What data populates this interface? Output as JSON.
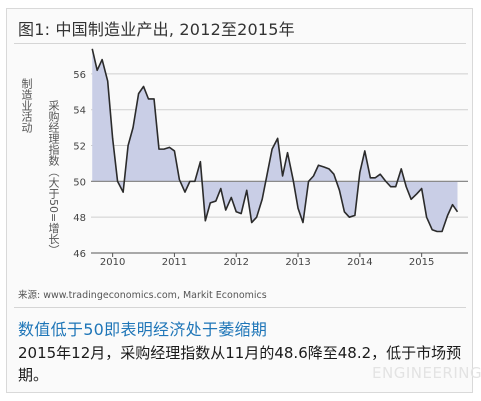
{
  "figure": {
    "title": "图1: 中国制造业产出, 2012至2015年",
    "source": "来源: www.tradingeconomics.com, Markit Economics",
    "headline": "数值低于50即表明经济处于萎缩期",
    "body": "2015年12月，采购经理指数从11月的48.6降至48.2，低于市场预期。",
    "watermark": "ENGINEERING"
  },
  "chart_data": {
    "type": "area",
    "ylabel_outer": "制造业活动",
    "ylabel_inner": "采购经理指数（大于50=增长）",
    "baseline": 50,
    "ylim": [
      46,
      57
    ],
    "yticks": [
      46,
      48,
      50,
      52,
      54,
      56
    ],
    "xlim": [
      2009.65,
      2015.75
    ],
    "xticks": [
      {
        "value": 2010,
        "label": "2010"
      },
      {
        "value": 2011,
        "label": "2011"
      },
      {
        "value": 2012,
        "label": "2012"
      },
      {
        "value": 2013,
        "label": "2013"
      },
      {
        "value": 2014,
        "label": "2014"
      },
      {
        "value": 2015,
        "label": "2015"
      }
    ],
    "grid": true,
    "line_color": "#2b2b2b",
    "fill_color": "#c9cee6",
    "x": [
      2009.67,
      2009.75,
      2009.83,
      2009.92,
      2010.0,
      2010.08,
      2010.17,
      2010.25,
      2010.33,
      2010.42,
      2010.5,
      2010.58,
      2010.67,
      2010.75,
      2010.83,
      2010.92,
      2011.0,
      2011.08,
      2011.17,
      2011.25,
      2011.33,
      2011.42,
      2011.5,
      2011.58,
      2011.67,
      2011.75,
      2011.83,
      2011.92,
      2012.0,
      2012.08,
      2012.17,
      2012.25,
      2012.33,
      2012.42,
      2012.5,
      2012.58,
      2012.67,
      2012.75,
      2012.83,
      2012.92,
      2013.0,
      2013.08,
      2013.17,
      2013.25,
      2013.33,
      2013.42,
      2013.5,
      2013.58,
      2013.67,
      2013.75,
      2013.83,
      2013.92,
      2014.0,
      2014.08,
      2014.17,
      2014.25,
      2014.33,
      2014.42,
      2014.5,
      2014.58,
      2014.67,
      2014.75,
      2014.83,
      2014.92,
      2015.0,
      2015.08,
      2015.17,
      2015.25,
      2015.33,
      2015.42,
      2015.5,
      2015.58
    ],
    "values": [
      57.4,
      56.2,
      56.8,
      55.6,
      52.4,
      50.0,
      49.4,
      52.0,
      53.0,
      54.9,
      55.3,
      54.6,
      54.6,
      51.8,
      51.8,
      51.9,
      51.7,
      50.1,
      49.4,
      50.0,
      50.0,
      51.1,
      47.8,
      48.8,
      48.9,
      49.6,
      48.4,
      49.1,
      48.3,
      48.2,
      49.5,
      47.7,
      48.0,
      49.0,
      50.4,
      51.8,
      52.4,
      50.3,
      51.6,
      50.1,
      48.5,
      47.7,
      50.0,
      50.3,
      50.9,
      50.8,
      50.7,
      50.4,
      49.5,
      48.3,
      48.0,
      48.1,
      50.5,
      51.7,
      50.2,
      50.2,
      50.4,
      50.0,
      49.7,
      49.7,
      50.7,
      49.7,
      49.0,
      49.3,
      49.6,
      48.0,
      47.3,
      47.2,
      47.2,
      48.1,
      48.7,
      48.3
    ]
  }
}
